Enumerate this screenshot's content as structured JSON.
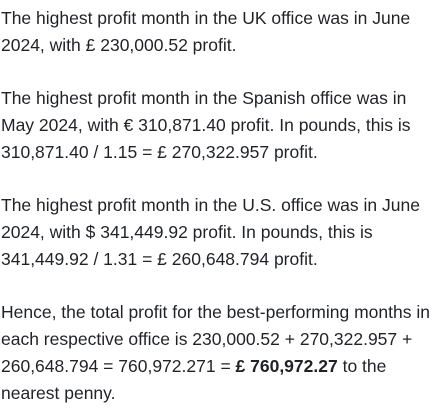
{
  "paragraphs": [
    {
      "text": "The highest profit month in the UK office was in June 2024, with £ 230,000.52 profit."
    },
    {
      "text": "The highest profit month in the Spanish office was in May 2024, with € 310,871.40 profit. In pounds, this is 310,871.40 / 1.15 = £ 270,322.957 profit."
    },
    {
      "text": "The highest profit month in the U.S. office was in June 2024, with $ 341,449.92 profit. In pounds, this is 341,449.92 / 1.31 = £ 260,648.794 profit."
    },
    {
      "before": "Hence, the total profit for the best-performing months in each respective office is 230,000.52 + 270,322.957 + 260,648.794 = 760,972.271 = ",
      "emphasis": "£ 760,972.27",
      "after": " to the nearest penny."
    }
  ]
}
